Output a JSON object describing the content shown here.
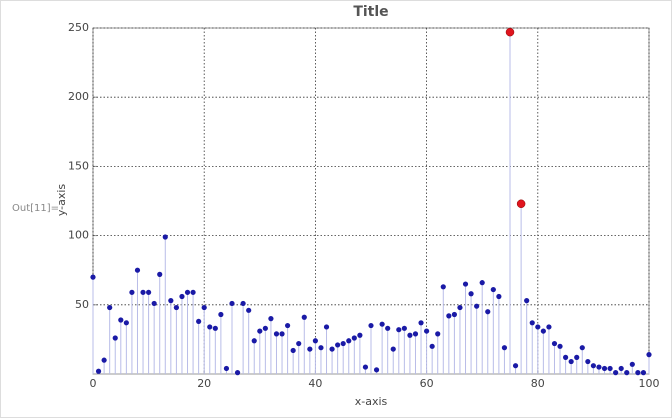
{
  "cell_label": "Out[11]=",
  "chart_data": {
    "type": "stem",
    "title": "Title",
    "x_label": "x-axis",
    "y_label": "y-axis",
    "x": [
      0,
      1,
      2,
      3,
      4,
      5,
      6,
      7,
      8,
      9,
      10,
      11,
      12,
      13,
      14,
      15,
      16,
      17,
      18,
      19,
      20,
      21,
      22,
      23,
      24,
      25,
      26,
      27,
      28,
      29,
      30,
      31,
      32,
      33,
      34,
      35,
      36,
      37,
      38,
      39,
      40,
      41,
      42,
      43,
      44,
      45,
      46,
      47,
      48,
      49,
      50,
      51,
      52,
      53,
      54,
      55,
      56,
      57,
      58,
      59,
      60,
      61,
      62,
      63,
      64,
      65,
      66,
      67,
      68,
      69,
      70,
      71,
      72,
      73,
      74,
      75,
      76,
      77,
      78,
      79,
      80,
      81,
      82,
      83,
      84,
      85,
      86,
      87,
      88,
      89,
      90,
      91,
      92,
      93,
      94,
      95,
      96,
      97,
      98,
      99,
      100
    ],
    "series": [
      {
        "color": "#1a1aa6",
        "stem_color": "#b8bce8",
        "values": [
          70,
          2,
          10,
          48,
          26,
          39,
          37,
          59,
          75,
          59,
          59,
          51,
          72,
          99,
          53,
          48,
          56,
          59,
          59,
          38,
          48,
          34,
          33,
          43,
          4,
          51,
          1,
          51,
          46,
          24,
          31,
          33,
          40,
          29,
          29,
          35,
          17,
          22,
          41,
          18,
          24,
          19,
          34,
          18,
          21,
          22,
          24,
          26,
          28,
          5,
          35,
          3,
          36,
          33,
          18,
          32,
          33,
          28,
          29,
          37,
          31,
          20,
          29,
          63,
          42,
          43,
          48,
          65,
          58,
          49,
          66,
          45,
          61,
          56,
          19,
          null,
          6,
          null,
          53,
          37,
          34,
          31,
          34,
          22,
          20,
          12,
          9,
          12,
          19,
          9,
          6,
          5,
          4,
          4,
          1,
          4,
          1,
          7,
          1,
          1,
          14
        ]
      },
      {
        "color": "#e0141e",
        "stem_color": "#b8bce8",
        "values": [
          null,
          null,
          null,
          null,
          null,
          null,
          null,
          null,
          null,
          null,
          null,
          null,
          null,
          null,
          null,
          null,
          null,
          null,
          null,
          null,
          null,
          null,
          null,
          null,
          null,
          null,
          null,
          null,
          null,
          null,
          null,
          null,
          null,
          null,
          null,
          null,
          null,
          null,
          null,
          null,
          null,
          null,
          null,
          null,
          null,
          null,
          null,
          null,
          null,
          null,
          null,
          null,
          null,
          null,
          null,
          null,
          null,
          null,
          null,
          null,
          null,
          null,
          null,
          null,
          null,
          null,
          null,
          null,
          null,
          null,
          null,
          null,
          null,
          null,
          null,
          247,
          null,
          123,
          null,
          null,
          null,
          null,
          null,
          null,
          null,
          null,
          null,
          null,
          null,
          null,
          null,
          null,
          null,
          null,
          null,
          null,
          null,
          null,
          null,
          null,
          null
        ]
      }
    ],
    "xlim": [
      0,
      100
    ],
    "xticks": [
      0,
      20,
      40,
      60,
      80,
      100
    ],
    "ylim": [
      0,
      250
    ],
    "yticks": [
      50,
      100,
      150,
      200,
      250
    ],
    "grid": true
  }
}
